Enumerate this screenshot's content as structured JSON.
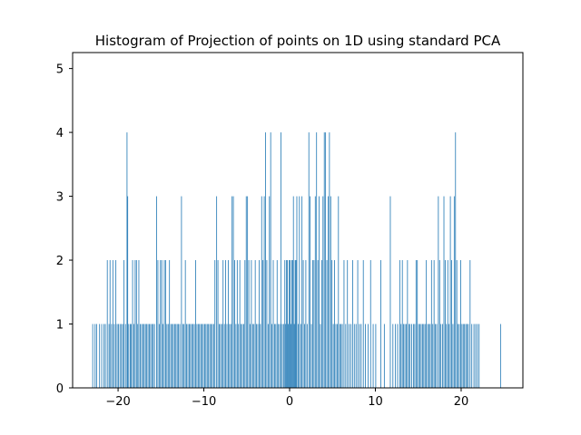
{
  "chart_data": {
    "type": "bar",
    "title": "Histogram of Projection of points on 1D using standard PCA",
    "xlabel": "",
    "ylabel": "",
    "xlim": [
      -25.3,
      27.2
    ],
    "ylim": [
      0,
      5.25
    ],
    "grid": false,
    "bar_color": "#1f77b4",
    "bin_width": 0.0475,
    "x_ticks": [
      -20,
      -10,
      0,
      10,
      20
    ],
    "x_tick_labels": [
      "−20",
      "−10",
      "0",
      "10",
      "20"
    ],
    "y_ticks": [
      0,
      1,
      2,
      3,
      4,
      5
    ],
    "y_tick_labels": [
      "0",
      "1",
      "2",
      "3",
      "4",
      "5"
    ],
    "bins": [
      [
        -23.0,
        1
      ],
      [
        -22.72,
        1
      ],
      [
        -22.55,
        1
      ],
      [
        -22.2,
        1
      ],
      [
        -21.95,
        1
      ],
      [
        -21.7,
        1
      ],
      [
        -21.52,
        1
      ],
      [
        -21.3,
        2
      ],
      [
        -21.1,
        1
      ],
      [
        -20.98,
        2
      ],
      [
        -20.8,
        1
      ],
      [
        -20.65,
        2
      ],
      [
        -20.48,
        1
      ],
      [
        -20.3,
        2
      ],
      [
        -20.15,
        1
      ],
      [
        -20.0,
        1
      ],
      [
        -19.82,
        1
      ],
      [
        -19.65,
        1
      ],
      [
        -19.5,
        1
      ],
      [
        -19.35,
        2
      ],
      [
        -19.18,
        1
      ],
      [
        -19.0,
        4
      ],
      [
        -18.92,
        3
      ],
      [
        -18.8,
        1
      ],
      [
        -18.62,
        1
      ],
      [
        -18.5,
        1
      ],
      [
        -18.35,
        2
      ],
      [
        -18.2,
        1
      ],
      [
        -18.05,
        2
      ],
      [
        -17.9,
        2
      ],
      [
        -17.75,
        1
      ],
      [
        -17.62,
        2
      ],
      [
        -17.45,
        1
      ],
      [
        -17.3,
        1
      ],
      [
        -17.15,
        1
      ],
      [
        -17.0,
        1
      ],
      [
        -16.85,
        1
      ],
      [
        -16.7,
        1
      ],
      [
        -16.55,
        1
      ],
      [
        -16.4,
        1
      ],
      [
        -16.25,
        1
      ],
      [
        -16.1,
        1
      ],
      [
        -15.95,
        1
      ],
      [
        -15.8,
        1
      ],
      [
        -15.55,
        3
      ],
      [
        -15.4,
        2
      ],
      [
        -15.25,
        1
      ],
      [
        -15.1,
        2
      ],
      [
        -14.95,
        2
      ],
      [
        -14.8,
        1
      ],
      [
        -14.65,
        2
      ],
      [
        -14.5,
        2
      ],
      [
        -14.35,
        1
      ],
      [
        -14.2,
        1
      ],
      [
        -14.05,
        2
      ],
      [
        -13.9,
        1
      ],
      [
        -13.75,
        1
      ],
      [
        -13.6,
        1
      ],
      [
        -13.45,
        1
      ],
      [
        -13.3,
        1
      ],
      [
        -13.15,
        1
      ],
      [
        -13.0,
        1
      ],
      [
        -12.85,
        1
      ],
      [
        -12.65,
        3
      ],
      [
        -12.5,
        1
      ],
      [
        -12.35,
        1
      ],
      [
        -12.2,
        2
      ],
      [
        -12.05,
        1
      ],
      [
        -11.9,
        1
      ],
      [
        -11.75,
        1
      ],
      [
        -11.6,
        1
      ],
      [
        -11.45,
        1
      ],
      [
        -11.3,
        1
      ],
      [
        -11.15,
        1
      ],
      [
        -11.0,
        2
      ],
      [
        -10.85,
        1
      ],
      [
        -10.7,
        1
      ],
      [
        -10.55,
        1
      ],
      [
        -10.4,
        1
      ],
      [
        -10.25,
        1
      ],
      [
        -10.1,
        1
      ],
      [
        -9.95,
        1
      ],
      [
        -9.8,
        1
      ],
      [
        -9.65,
        1
      ],
      [
        -9.5,
        1
      ],
      [
        -9.35,
        1
      ],
      [
        -9.2,
        1
      ],
      [
        -9.05,
        1
      ],
      [
        -8.9,
        1
      ],
      [
        -8.75,
        2
      ],
      [
        -8.55,
        3
      ],
      [
        -8.4,
        2
      ],
      [
        -8.25,
        1
      ],
      [
        -8.1,
        1
      ],
      [
        -7.95,
        1
      ],
      [
        -7.8,
        2
      ],
      [
        -7.65,
        1
      ],
      [
        -7.5,
        2
      ],
      [
        -7.35,
        1
      ],
      [
        -7.2,
        2
      ],
      [
        -7.05,
        1
      ],
      [
        -6.9,
        1
      ],
      [
        -6.75,
        3
      ],
      [
        -6.6,
        3
      ],
      [
        -6.45,
        2
      ],
      [
        -6.3,
        1
      ],
      [
        -6.15,
        2
      ],
      [
        -6.0,
        1
      ],
      [
        -5.85,
        2
      ],
      [
        -5.7,
        1
      ],
      [
        -5.55,
        1
      ],
      [
        -5.4,
        1
      ],
      [
        -5.25,
        2
      ],
      [
        -5.1,
        3
      ],
      [
        -4.95,
        3
      ],
      [
        -4.8,
        2
      ],
      [
        -4.65,
        1
      ],
      [
        -4.5,
        2
      ],
      [
        -4.35,
        1
      ],
      [
        -4.2,
        1
      ],
      [
        -4.05,
        2
      ],
      [
        -3.9,
        1
      ],
      [
        -3.75,
        1
      ],
      [
        -3.6,
        2
      ],
      [
        -3.45,
        1
      ],
      [
        -3.3,
        3
      ],
      [
        -3.15,
        2
      ],
      [
        -3.0,
        3
      ],
      [
        -2.85,
        4
      ],
      [
        -2.7,
        2
      ],
      [
        -2.55,
        1
      ],
      [
        -2.4,
        3
      ],
      [
        -2.25,
        4
      ],
      [
        -2.1,
        1
      ],
      [
        -1.95,
        2
      ],
      [
        -1.8,
        1
      ],
      [
        -1.65,
        1
      ],
      [
        -1.5,
        2
      ],
      [
        -1.35,
        1
      ],
      [
        -1.2,
        1
      ],
      [
        -1.05,
        4
      ],
      [
        -0.9,
        1
      ],
      [
        -0.75,
        1
      ],
      [
        -0.6,
        2
      ],
      [
        -0.5,
        1
      ],
      [
        -0.4,
        2
      ],
      [
        -0.3,
        2
      ],
      [
        -0.2,
        1
      ],
      [
        -0.1,
        2
      ],
      [
        0.0,
        2
      ],
      [
        0.1,
        1
      ],
      [
        0.2,
        2
      ],
      [
        0.3,
        2
      ],
      [
        0.4,
        3
      ],
      [
        0.5,
        1
      ],
      [
        0.6,
        2
      ],
      [
        0.7,
        2
      ],
      [
        0.8,
        3
      ],
      [
        0.95,
        1
      ],
      [
        1.1,
        3
      ],
      [
        1.25,
        1
      ],
      [
        1.4,
        3
      ],
      [
        1.55,
        2
      ],
      [
        1.7,
        1
      ],
      [
        1.85,
        2
      ],
      [
        2.0,
        1
      ],
      [
        2.2,
        4
      ],
      [
        2.35,
        3
      ],
      [
        2.5,
        1
      ],
      [
        2.65,
        2
      ],
      [
        2.8,
        2
      ],
      [
        2.95,
        3
      ],
      [
        3.1,
        4
      ],
      [
        3.25,
        2
      ],
      [
        3.4,
        3
      ],
      [
        3.55,
        1
      ],
      [
        3.7,
        2
      ],
      [
        3.85,
        3
      ],
      [
        4.0,
        4
      ],
      [
        4.15,
        4
      ],
      [
        4.3,
        2
      ],
      [
        4.45,
        3
      ],
      [
        4.6,
        4
      ],
      [
        4.75,
        3
      ],
      [
        4.9,
        2
      ],
      [
        5.05,
        1
      ],
      [
        5.2,
        2
      ],
      [
        5.35,
        1
      ],
      [
        5.5,
        1
      ],
      [
        5.65,
        3
      ],
      [
        5.8,
        1
      ],
      [
        5.95,
        1
      ],
      [
        6.1,
        1
      ],
      [
        6.3,
        2
      ],
      [
        6.5,
        1
      ],
      [
        6.7,
        2
      ],
      [
        6.9,
        1
      ],
      [
        7.1,
        1
      ],
      [
        7.3,
        2
      ],
      [
        7.5,
        1
      ],
      [
        7.7,
        1
      ],
      [
        7.9,
        2
      ],
      [
        8.1,
        1
      ],
      [
        8.3,
        1
      ],
      [
        8.55,
        2
      ],
      [
        8.8,
        1
      ],
      [
        9.1,
        1
      ],
      [
        9.4,
        2
      ],
      [
        9.7,
        1
      ],
      [
        10.0,
        1
      ],
      [
        10.6,
        2
      ],
      [
        11.0,
        1
      ],
      [
        11.7,
        3
      ],
      [
        12.0,
        1
      ],
      [
        12.3,
        1
      ],
      [
        12.55,
        1
      ],
      [
        12.8,
        2
      ],
      [
        12.95,
        1
      ],
      [
        13.1,
        2
      ],
      [
        13.25,
        1
      ],
      [
        13.4,
        1
      ],
      [
        13.55,
        1
      ],
      [
        13.7,
        2
      ],
      [
        13.85,
        1
      ],
      [
        14.0,
        1
      ],
      [
        14.2,
        1
      ],
      [
        14.4,
        1
      ],
      [
        14.55,
        1
      ],
      [
        14.7,
        2
      ],
      [
        14.85,
        2
      ],
      [
        15.0,
        1
      ],
      [
        15.15,
        1
      ],
      [
        15.3,
        1
      ],
      [
        15.45,
        1
      ],
      [
        15.6,
        1
      ],
      [
        15.75,
        1
      ],
      [
        15.9,
        2
      ],
      [
        16.05,
        1
      ],
      [
        16.2,
        1
      ],
      [
        16.35,
        1
      ],
      [
        16.5,
        2
      ],
      [
        16.65,
        1
      ],
      [
        16.8,
        2
      ],
      [
        16.95,
        1
      ],
      [
        17.1,
        1
      ],
      [
        17.3,
        3
      ],
      [
        17.45,
        2
      ],
      [
        17.6,
        1
      ],
      [
        17.8,
        1
      ],
      [
        17.95,
        3
      ],
      [
        18.1,
        2
      ],
      [
        18.25,
        1
      ],
      [
        18.4,
        2
      ],
      [
        18.55,
        1
      ],
      [
        18.7,
        3
      ],
      [
        18.85,
        2
      ],
      [
        19.0,
        1
      ],
      [
        19.15,
        3
      ],
      [
        19.3,
        4
      ],
      [
        19.45,
        2
      ],
      [
        19.6,
        1
      ],
      [
        19.75,
        1
      ],
      [
        19.9,
        2
      ],
      [
        20.05,
        1
      ],
      [
        20.2,
        1
      ],
      [
        20.35,
        1
      ],
      [
        20.5,
        1
      ],
      [
        20.65,
        1
      ],
      [
        20.8,
        1
      ],
      [
        21.0,
        2
      ],
      [
        21.2,
        1
      ],
      [
        21.45,
        1
      ],
      [
        21.65,
        1
      ],
      [
        21.85,
        1
      ],
      [
        22.05,
        1
      ],
      [
        24.55,
        1
      ]
    ]
  }
}
